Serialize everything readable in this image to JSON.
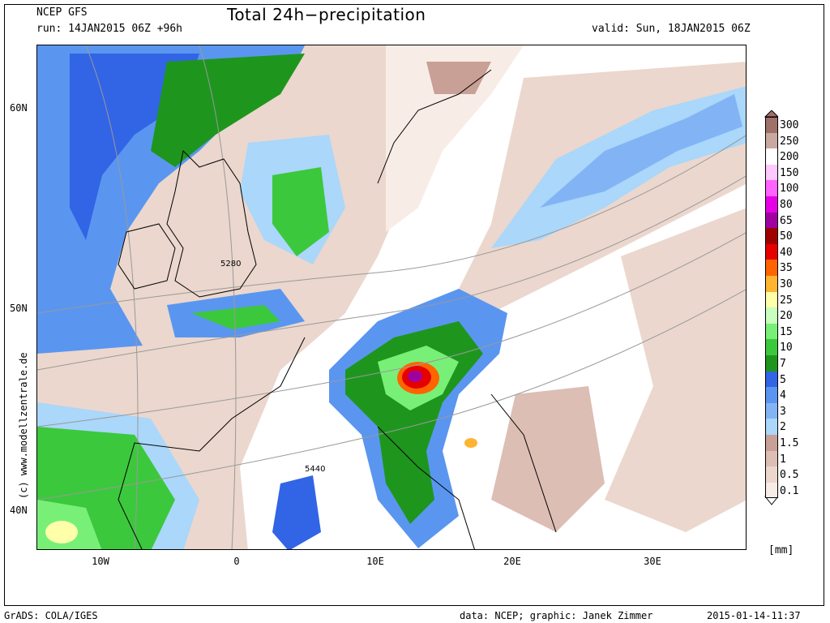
{
  "header": {
    "model": "NCEP GFS",
    "run": "run: 14JAN2015 06Z +96h",
    "title": "Total 24h−precipitation",
    "valid": "valid: Sun, 18JAN2015 06Z"
  },
  "map": {
    "lat_labels": [
      "60N",
      "50N",
      "40N"
    ],
    "lon_labels": [
      "10W",
      "0",
      "10E",
      "20E",
      "30E"
    ],
    "contour_labels": [
      "5280",
      "5440"
    ],
    "watermark": "(c) www.modellzentrale.de"
  },
  "legend": {
    "items": [
      {
        "label": "300",
        "color": "#a0706a"
      },
      {
        "label": "250",
        "color": "#c8a8a0"
      },
      {
        "label": "200",
        "color": "#ffffff"
      },
      {
        "label": "150",
        "color": "#ffc8ff"
      },
      {
        "label": "100",
        "color": "#ff64ff"
      },
      {
        "label": "80",
        "color": "#e600e6"
      },
      {
        "label": "65",
        "color": "#a000a0"
      },
      {
        "label": "50",
        "color": "#a00000"
      },
      {
        "label": "40",
        "color": "#e60000"
      },
      {
        "label": "35",
        "color": "#ff6400"
      },
      {
        "label": "30",
        "color": "#ffb432"
      },
      {
        "label": "25",
        "color": "#ffffaa"
      },
      {
        "label": "20",
        "color": "#c8ffbe"
      },
      {
        "label": "15",
        "color": "#78f078"
      },
      {
        "label": "10",
        "color": "#3cc83c"
      },
      {
        "label": "7",
        "color": "#1e961e"
      },
      {
        "label": "5",
        "color": "#3264e6"
      },
      {
        "label": "4",
        "color": "#5a96f0"
      },
      {
        "label": "3",
        "color": "#82b4f5"
      },
      {
        "label": "2",
        "color": "#aad7fa"
      },
      {
        "label": "1.5",
        "color": "#c8a096"
      },
      {
        "label": "1",
        "color": "#dcbeb4"
      },
      {
        "label": "0.5",
        "color": "#ebd7cd"
      },
      {
        "label": "0.1",
        "color": "#f8ece6"
      }
    ],
    "unit": "[mm]"
  },
  "footer": {
    "left": "GrADS: COLA/IGES",
    "center": "data: NCEP; graphic: Janek Zimmer",
    "right": "2015-01-14-11:37"
  }
}
